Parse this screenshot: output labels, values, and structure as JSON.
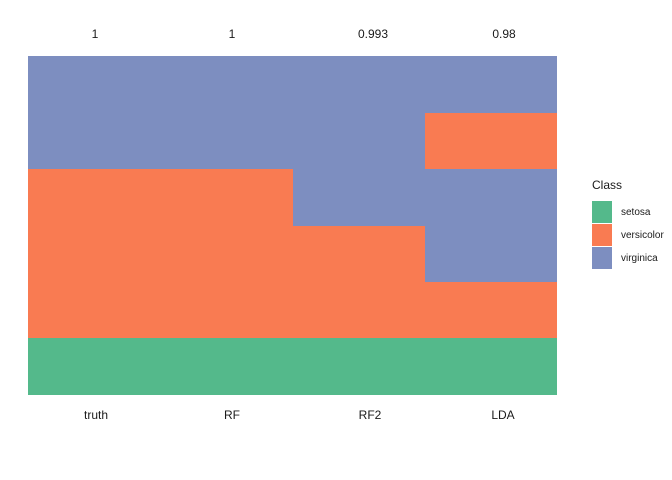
{
  "chart_data": {
    "type": "heatmap",
    "description": "Class prediction comparison tile plot: stacked class bands per model column",
    "categories": [
      "truth",
      "RF",
      "RF2",
      "LDA"
    ],
    "accuracy_labels": [
      "1",
      "1",
      "0.993",
      "0.98"
    ],
    "classes": [
      "setosa",
      "versicolor",
      "virginica"
    ],
    "class_colors": {
      "setosa": "#54B98B",
      "versicolor": "#F97B52",
      "virginica": "#7D8EC0"
    },
    "legend": {
      "title": "Class",
      "position": "right",
      "entries": [
        "setosa",
        "versicolor",
        "virginica"
      ]
    },
    "axes": {
      "x_top_labels": [
        "1",
        "1",
        "0.993",
        "0.98"
      ],
      "x_bottom_labels": [
        "truth",
        "RF",
        "RF2",
        "LDA"
      ],
      "grid": false,
      "axis_lines": false
    },
    "columns": [
      {
        "name": "truth",
        "top_label": "1",
        "segments": [
          {
            "class": "virginica",
            "fraction": 0.3333
          },
          {
            "class": "versicolor",
            "fraction": 0.5
          },
          {
            "class": "setosa",
            "fraction": 0.1667
          }
        ]
      },
      {
        "name": "RF",
        "top_label": "1",
        "segments": [
          {
            "class": "virginica",
            "fraction": 0.3333
          },
          {
            "class": "versicolor",
            "fraction": 0.5
          },
          {
            "class": "setosa",
            "fraction": 0.1667
          }
        ]
      },
      {
        "name": "RF2",
        "top_label": "0.993",
        "segments": [
          {
            "class": "virginica",
            "fraction": 0.5
          },
          {
            "class": "versicolor",
            "fraction": 0.3333
          },
          {
            "class": "setosa",
            "fraction": 0.1667
          }
        ]
      },
      {
        "name": "LDA",
        "top_label": "0.98",
        "segments": [
          {
            "class": "virginica",
            "fraction": 0.1667
          },
          {
            "class": "versicolor",
            "fraction": 0.1667
          },
          {
            "class": "virginica",
            "fraction": 0.3333
          },
          {
            "class": "versicolor",
            "fraction": 0.1667
          },
          {
            "class": "setosa",
            "fraction": 0.1667
          }
        ]
      }
    ]
  }
}
